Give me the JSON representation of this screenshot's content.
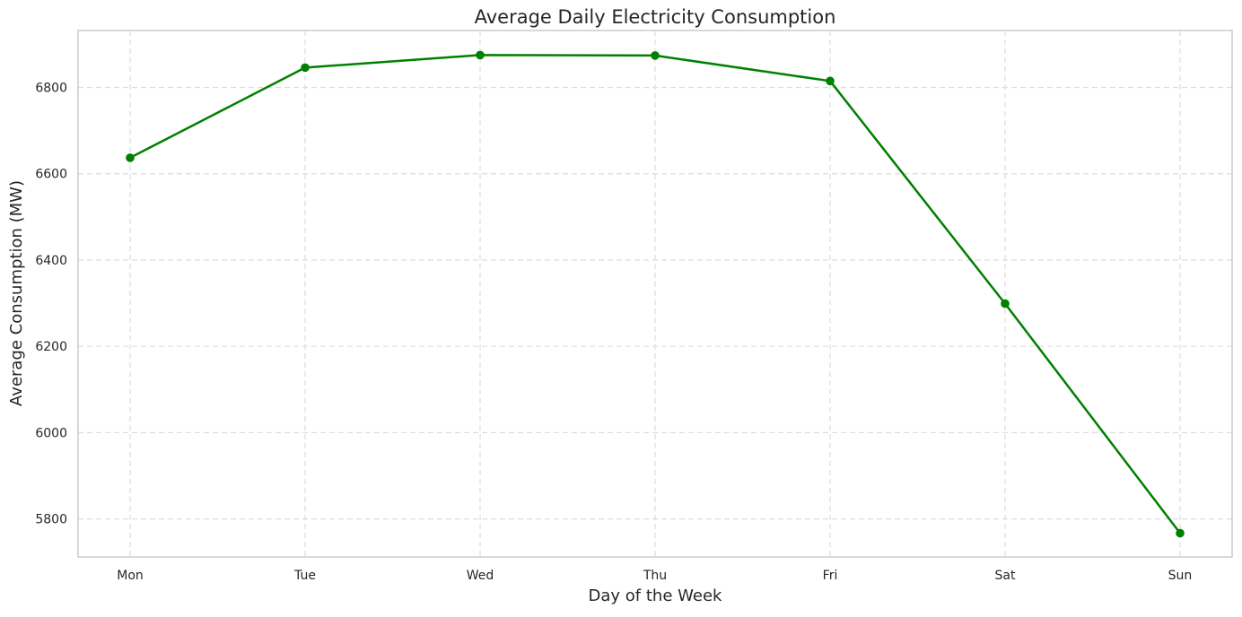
{
  "chart_data": {
    "type": "line",
    "title": "Average Daily Electricity Consumption",
    "xlabel": "Day of the Week",
    "ylabel": "Average Consumption (MW)",
    "categories": [
      "Mon",
      "Tue",
      "Wed",
      "Thu",
      "Fri",
      "Sat",
      "Sun"
    ],
    "series": [
      {
        "values": [
          6637,
          6846,
          6875,
          6874,
          6815,
          6299,
          5767
        ],
        "color": "#008000",
        "marker": "circle"
      }
    ],
    "ylim": [
      5712,
      6932
    ],
    "yticks": [
      5800,
      6000,
      6200,
      6400,
      6600,
      6800
    ],
    "grid": true,
    "grid_style": "dashed",
    "legend": "none"
  }
}
